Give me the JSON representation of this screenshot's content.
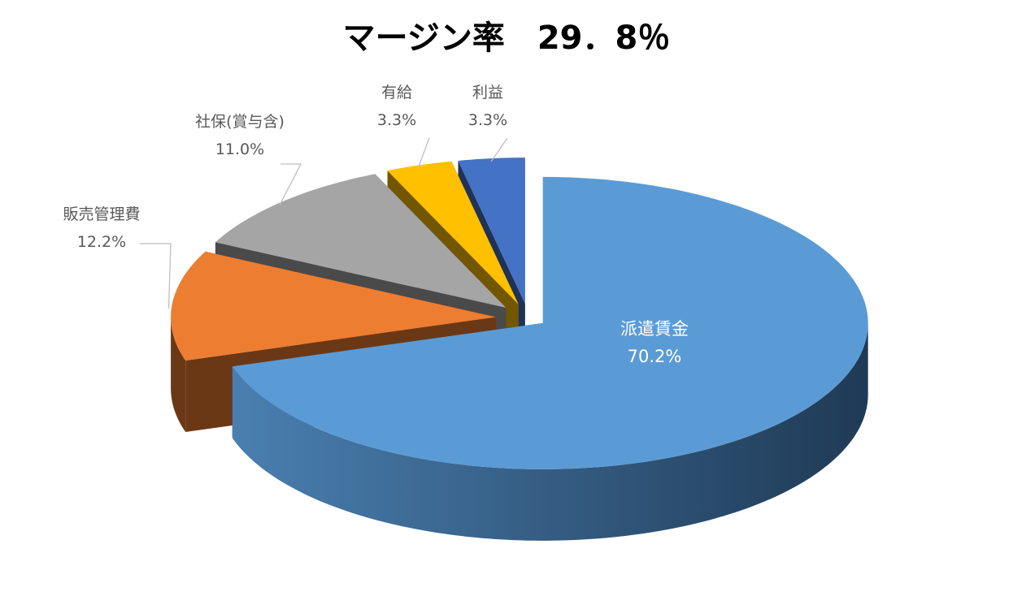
{
  "chart_data": {
    "type": "pie",
    "title": "マージン率　29．8％",
    "categories": [
      "派遣賃金",
      "販売管理費",
      "社保(賞与含)",
      "有給",
      "利益"
    ],
    "values": [
      70.2,
      12.2,
      11.0,
      3.3,
      3.3
    ],
    "value_labels": [
      "70.2%",
      "12.2%",
      "11.0%",
      "3.3%",
      "3.3%"
    ],
    "colors": [
      "#5b9bd5",
      "#ed7d31",
      "#a5a5a5",
      "#ffc000",
      "#4472c4"
    ]
  }
}
